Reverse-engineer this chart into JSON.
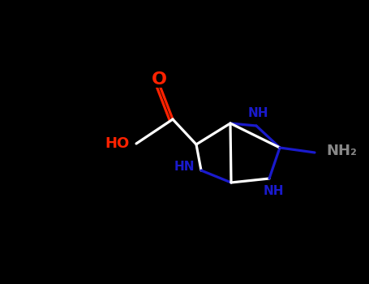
{
  "background_color": "#000000",
  "figsize": [
    4.55,
    3.5
  ],
  "dpi": 100,
  "colors": {
    "bond": "#ffffff",
    "O": "#ff2200",
    "N": "#2020cc",
    "HO": "#ff2200",
    "NH2": "#606060",
    "black": "#000000"
  },
  "lw": 2.2,
  "xlim": [
    0,
    455
  ],
  "ylim": [
    0,
    350
  ]
}
